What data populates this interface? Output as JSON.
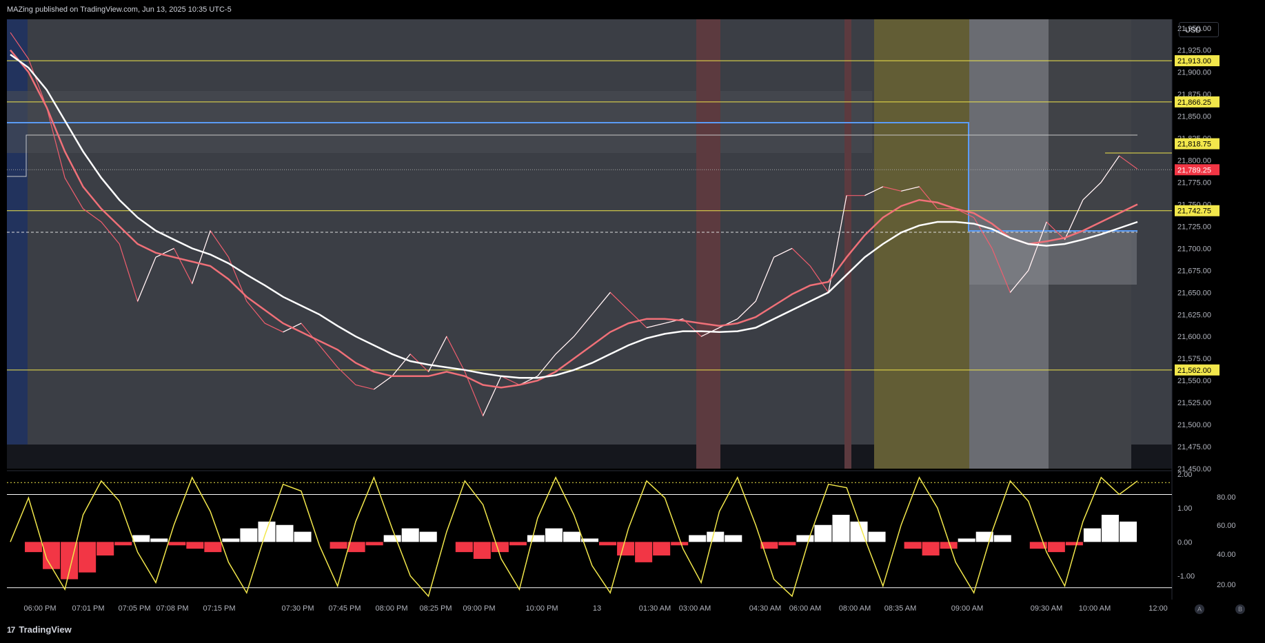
{
  "header": {
    "published": "MAZing published on TradingView.com, Jun 13, 2025 10:35 UTC-5"
  },
  "footer": {
    "brand": "TradingView",
    "logo": "17"
  },
  "scale": {
    "currency": "USD",
    "btn_a": "A",
    "btn_b": "B"
  },
  "colors": {
    "bg": "#000000",
    "price_up": "#ffffff",
    "price_down": "#f05e6e",
    "ma_red": "#f07078",
    "ma_white": "#ffffff",
    "level": "#f2e74b",
    "blue_box": "#5b9cf6",
    "osc": "#f2e74b",
    "hist_up": "#ffffff",
    "hist_down": "#f23645"
  },
  "chart_data": [
    {
      "type": "line",
      "title": "",
      "y_ticks": [
        "21,950.00",
        "21,925.00",
        "21,900.00",
        "21,875.00",
        "21,850.00",
        "21,825.00",
        "21,800.00",
        "21,775.00",
        "21,750.00",
        "21,725.00",
        "21,700.00",
        "21,675.00",
        "21,650.00",
        "21,625.00",
        "21,600.00",
        "21,575.00",
        "21,550.00",
        "21,525.00",
        "21,500.00",
        "21,475.00",
        "21,450.00"
      ],
      "ylim": [
        21450,
        21960
      ],
      "x_ticks": [
        "06:00 PM",
        "07:01 PM",
        "07:05 PM",
        "07:08 PM",
        "07:15 PM",
        "07:30 PM",
        "07:45 PM",
        "08:00 PM",
        "08:25 PM",
        "09:00 PM",
        "10:00 PM",
        "13",
        "01:30 AM",
        "03:00 AM",
        "04:30 AM",
        "06:00 AM",
        "08:00 AM",
        "08:35 AM",
        "09:00 AM",
        "09:30 AM",
        "10:00 AM",
        "12:00"
      ],
      "price_labels": [
        {
          "text": "21,913.00",
          "value": 21913
        },
        {
          "text": "21,866.25",
          "value": 21866.25
        },
        {
          "text": "21,818.75",
          "value": 21818.75
        },
        {
          "text": "21,789.25",
          "value": 21789.25
        },
        {
          "text": "21,742.75",
          "value": 21742.75
        },
        {
          "text": "21,562.00",
          "value": 21562
        }
      ],
      "horizontal_levels": [
        21913,
        21866.25,
        21742.75,
        21562
      ],
      "series": [
        {
          "values": [
            21945,
            21915,
            21860,
            21780,
            21745,
            21730,
            21705,
            21640,
            21690,
            21700,
            21660,
            21720,
            21690,
            21640,
            21615,
            21605,
            21615,
            21590,
            21565,
            21545,
            21540,
            21555,
            21580,
            21560,
            21600,
            21560,
            21510,
            21555,
            21545,
            21555,
            21580,
            21600,
            21625,
            21650,
            21630,
            21610,
            21615,
            21620,
            21600,
            21610,
            21620,
            21640,
            21690,
            21700,
            21680,
            21650,
            21760,
            21760,
            21770,
            21765,
            21770,
            21745,
            21745,
            21735,
            21700,
            21650,
            21675,
            21730,
            21710,
            21755,
            21775,
            21805,
            21790
          ]
        },
        {
          "values": [
            21925,
            21900,
            21860,
            21810,
            21770,
            21745,
            21725,
            21705,
            21695,
            21690,
            21685,
            21680,
            21665,
            21645,
            21630,
            21615,
            21605,
            21595,
            21585,
            21570,
            21560,
            21555,
            21555,
            21555,
            21560,
            21555,
            21545,
            21542,
            21545,
            21550,
            21560,
            21575,
            21590,
            21605,
            21615,
            21620,
            21620,
            21618,
            21615,
            21612,
            21615,
            21622,
            21635,
            21648,
            21658,
            21662,
            21690,
            21715,
            21735,
            21748,
            21755,
            21752,
            21745,
            21740,
            21728,
            21712,
            21705,
            21708,
            21712,
            21720,
            21730,
            21740,
            21750
          ]
        },
        {
          "values": [
            21920,
            21905,
            21880,
            21845,
            21810,
            21780,
            21755,
            21735,
            21720,
            21710,
            21700,
            21693,
            21683,
            21670,
            21658,
            21645,
            21635,
            21625,
            21612,
            21600,
            21590,
            21580,
            21572,
            21568,
            21565,
            21562,
            21558,
            21555,
            21553,
            21553,
            21556,
            21562,
            21570,
            21580,
            21590,
            21598,
            21603,
            21606,
            21606,
            21605,
            21606,
            21610,
            21620,
            21630,
            21640,
            21650,
            21670,
            21690,
            21705,
            21718,
            21726,
            21730,
            21730,
            21728,
            21722,
            21712,
            21705,
            21703,
            21705,
            21710,
            21716,
            21723,
            21730
          ]
        }
      ]
    },
    {
      "type": "area",
      "y_ticks_left": [
        "2.00",
        "1.00",
        "0.00",
        "-1.00"
      ],
      "y_ticks_right": [
        "80.00",
        "60.00",
        "40.00",
        "20.00"
      ],
      "ylim": [
        -1.7,
        2.1
      ],
      "reference_lines": [
        1.75,
        1.4,
        -1.35
      ],
      "histogram": [
        0.0,
        -0.3,
        -0.8,
        -1.1,
        -0.9,
        -0.4,
        -0.1,
        0.2,
        0.1,
        -0.1,
        -0.2,
        -0.3,
        0.1,
        0.4,
        0.6,
        0.5,
        0.3,
        0.0,
        -0.2,
        -0.3,
        -0.1,
        0.2,
        0.4,
        0.3,
        0.0,
        -0.3,
        -0.5,
        -0.3,
        -0.1,
        0.2,
        0.4,
        0.3,
        0.1,
        -0.1,
        -0.4,
        -0.6,
        -0.4,
        -0.1,
        0.2,
        0.3,
        0.2,
        0.0,
        -0.2,
        -0.1,
        0.2,
        0.5,
        0.8,
        0.6,
        0.3,
        0.0,
        -0.2,
        -0.4,
        -0.2,
        0.1,
        0.3,
        0.2,
        0.0,
        -0.2,
        -0.3,
        -0.1,
        0.4,
        0.8,
        0.6
      ],
      "oscillator": [
        0.0,
        1.3,
        -0.5,
        -1.4,
        0.8,
        1.8,
        1.2,
        -0.3,
        -1.2,
        0.5,
        1.9,
        0.9,
        -0.6,
        -1.5,
        0.2,
        1.7,
        1.5,
        -0.1,
        -1.3,
        0.6,
        1.9,
        0.4,
        -1.0,
        -1.6,
        0.3,
        1.8,
        1.1,
        -0.5,
        -1.4,
        0.7,
        1.9,
        0.8,
        -0.7,
        -1.5,
        0.4,
        1.8,
        1.3,
        -0.2,
        -1.2,
        0.9,
        1.9,
        0.5,
        -1.1,
        -1.6,
        0.2,
        1.7,
        1.6,
        0.1,
        -1.3,
        0.5,
        1.9,
        1.0,
        -0.6,
        -1.5,
        0.3,
        1.8,
        1.2,
        -0.3,
        -1.3,
        0.6,
        1.9,
        1.4,
        1.8
      ]
    }
  ]
}
